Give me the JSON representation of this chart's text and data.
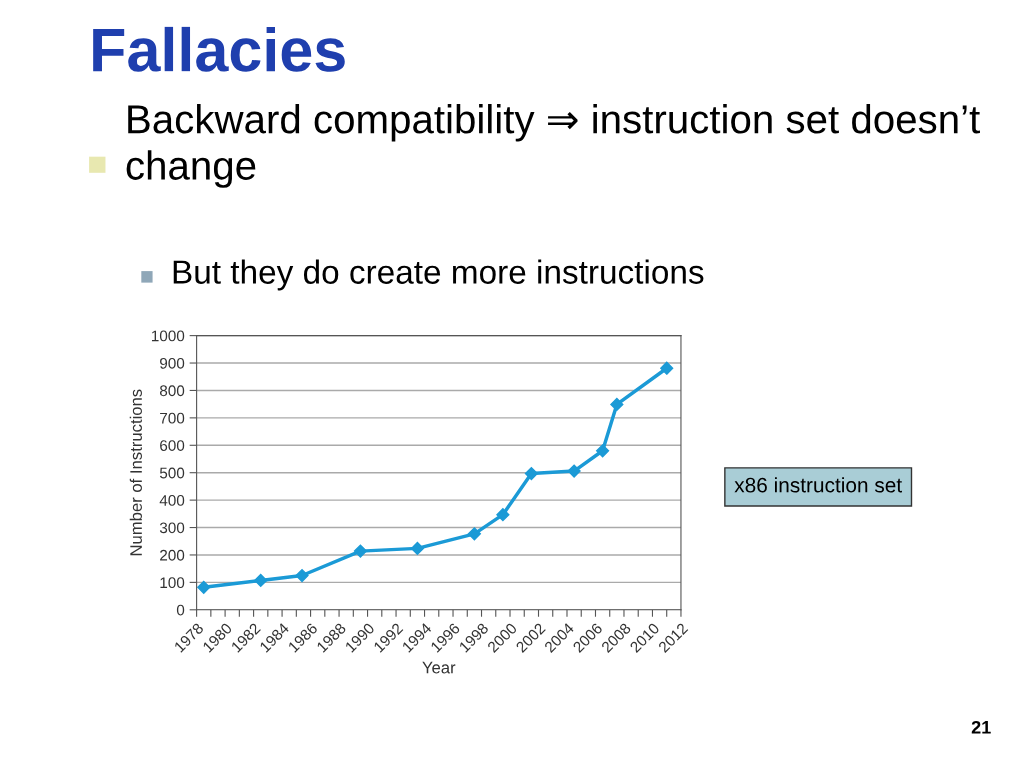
{
  "chart_data": {
    "type": "line",
    "title": "Fallacies",
    "xlabel": "Year",
    "ylabel": "Number of Instructions",
    "x": [
      1978.5,
      1982.5,
      1985.4,
      1989.5,
      1993.5,
      1997.5,
      1999.5,
      2001.5,
      2004.5,
      2006.5,
      2007.5,
      2011
    ],
    "series": [
      {
        "color": "#1b9ad6",
        "values": [
          82,
          107,
          125,
          214,
          224,
          277,
          347,
          497,
          506,
          580,
          749,
          881
        ]
      }
    ],
    "xlim": [
      1978,
      2012
    ],
    "xticks": [
      1978,
      {
        "value": 1979,
        "label": null
      },
      1980,
      {
        "value": 1981,
        "label": null
      },
      1982,
      {
        "value": 1983,
        "label": null
      },
      1984,
      {
        "value": 1985,
        "label": null
      },
      1986,
      {
        "value": 1987,
        "label": null
      },
      1988,
      {
        "value": 1989,
        "label": null
      },
      1990,
      {
        "value": 1991,
        "label": null
      },
      1992,
      {
        "value": 1993,
        "label": null
      },
      1994,
      {
        "value": 1995,
        "label": null
      },
      1996,
      {
        "value": 1997,
        "label": null
      },
      1998,
      {
        "value": 1999,
        "label": null
      },
      2000,
      {
        "value": 2001,
        "label": null
      },
      2002,
      {
        "value": 2003,
        "label": null
      },
      2004,
      {
        "value": 2005,
        "label": null
      },
      2006,
      {
        "value": 2007,
        "label": null
      },
      2008,
      {
        "value": 2009,
        "label": null
      },
      2010,
      {
        "value": 2011,
        "label": null
      },
      2012
    ],
    "ylim": [
      0,
      1000
    ],
    "yticks": [
      0,
      100,
      200,
      300,
      400,
      500,
      600,
      700,
      800,
      900,
      1000
    ],
    "grid": "y",
    "marker": "diamond",
    "line_style": "solid",
    "legend": false,
    "annotations": [
      "Backward compatibility ⇒ instruction set doesn’t change",
      "But they do create more instructions",
      "x86 instruction set",
      "21"
    ]
  }
}
